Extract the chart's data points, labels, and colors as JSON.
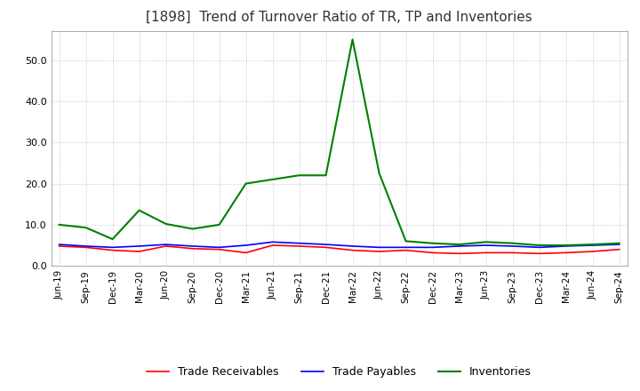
{
  "title": "[1898]  Trend of Turnover Ratio of TR, TP and Inventories",
  "x_labels": [
    "Jun-19",
    "Sep-19",
    "Dec-19",
    "Mar-20",
    "Jun-20",
    "Sep-20",
    "Dec-20",
    "Mar-21",
    "Jun-21",
    "Sep-21",
    "Dec-21",
    "Mar-22",
    "Jun-22",
    "Sep-22",
    "Dec-22",
    "Mar-23",
    "Jun-23",
    "Sep-23",
    "Dec-23",
    "Mar-24",
    "Jun-24",
    "Sep-24"
  ],
  "trade_receivables": [
    4.8,
    4.5,
    3.8,
    3.5,
    4.8,
    4.2,
    4.0,
    3.2,
    5.0,
    4.8,
    4.5,
    3.8,
    3.5,
    3.8,
    3.2,
    3.0,
    3.2,
    3.2,
    3.0,
    3.2,
    3.5,
    4.0
  ],
  "trade_payables": [
    5.2,
    4.8,
    4.5,
    4.8,
    5.2,
    4.8,
    4.5,
    5.0,
    5.8,
    5.5,
    5.2,
    4.8,
    4.5,
    4.5,
    4.5,
    4.8,
    5.0,
    4.8,
    4.5,
    4.8,
    5.0,
    5.2
  ],
  "inventories": [
    10.0,
    9.3,
    6.5,
    13.5,
    10.2,
    9.0,
    10.0,
    20.0,
    21.0,
    22.0,
    22.0,
    55.0,
    22.5,
    6.0,
    5.5,
    5.2,
    5.8,
    5.5,
    5.0,
    5.0,
    5.2,
    5.5
  ],
  "tr_color": "#ff0000",
  "tp_color": "#0000ff",
  "inv_color": "#008000",
  "ylim": [
    0,
    57
  ],
  "yticks": [
    0.0,
    10.0,
    20.0,
    30.0,
    40.0,
    50.0
  ],
  "background_color": "#ffffff",
  "grid_color": "#aaaaaa",
  "title_fontsize": 11,
  "legend_labels": [
    "Trade Receivables",
    "Trade Payables",
    "Inventories"
  ]
}
